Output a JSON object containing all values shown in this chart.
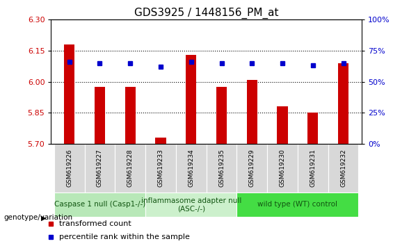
{
  "title": "GDS3925 / 1448156_PM_at",
  "samples": [
    "GSM619226",
    "GSM619227",
    "GSM619228",
    "GSM619233",
    "GSM619234",
    "GSM619235",
    "GSM619229",
    "GSM619230",
    "GSM619231",
    "GSM619232"
  ],
  "bar_values": [
    6.18,
    5.975,
    5.975,
    5.73,
    6.13,
    5.975,
    6.01,
    5.88,
    5.85,
    6.09
  ],
  "percentile_values": [
    66,
    65,
    65,
    62,
    66,
    65,
    65,
    65,
    63,
    65
  ],
  "ylim": [
    5.7,
    6.3
  ],
  "yticks": [
    5.7,
    5.85,
    6.0,
    6.15,
    6.3
  ],
  "ylim_right": [
    0,
    100
  ],
  "yticks_right": [
    0,
    25,
    50,
    75,
    100
  ],
  "bar_color": "#cc0000",
  "dot_color": "#0000cc",
  "groups": [
    {
      "label": "Caspase 1 null (Casp1-/-)",
      "start": 0,
      "end": 3,
      "color": "#b8e8b8"
    },
    {
      "label": "inflammasome adapter null\n(ASC-/-)",
      "start": 3,
      "end": 6,
      "color": "#ccf0cc"
    },
    {
      "label": "wild type (WT) control",
      "start": 6,
      "end": 10,
      "color": "#44dd44"
    }
  ],
  "legend_bar_label": "transformed count",
  "legend_dot_label": "percentile rank within the sample",
  "xlabel_left": "genotype/variation",
  "title_fontsize": 11,
  "tick_fontsize": 8,
  "group_label_fontsize": 7.5,
  "sample_fontsize": 6.5,
  "legend_fontsize": 8
}
